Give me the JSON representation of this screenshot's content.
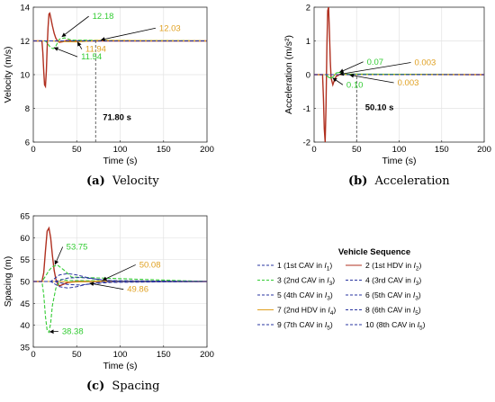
{
  "colors": {
    "green": "#33cc33",
    "orange": "#e0a020",
    "red": "#b03020",
    "blue": "#2a35a0",
    "black": "#000000"
  },
  "chart_data": [
    {
      "id": "velocity",
      "type": "line",
      "panel": "a",
      "caption_label": "(a)",
      "caption_text": "Velocity",
      "xlabel": "Time (s)",
      "ylabel": "Velocity (m/s)",
      "xlim": [
        0,
        200
      ],
      "ylim": [
        6,
        14
      ],
      "xticks": [
        0,
        50,
        100,
        150,
        200
      ],
      "yticks": [
        6,
        8,
        10,
        12,
        14
      ],
      "grid": true,
      "series": [
        {
          "color_key": "red",
          "style": "solid",
          "width": 1.4,
          "x": [
            0,
            10,
            11,
            12,
            13,
            14,
            15,
            16,
            17,
            18,
            19,
            20,
            22,
            24,
            26,
            28,
            30,
            34,
            38,
            44,
            50,
            200
          ],
          "y": [
            12,
            12,
            11.3,
            10.2,
            9.4,
            9.3,
            10.2,
            11.6,
            12.8,
            13.6,
            13.65,
            13.4,
            12.9,
            12.45,
            12.15,
            12.0,
            11.92,
            11.95,
            12.02,
            12.0,
            12.0,
            12.0
          ]
        },
        {
          "color_key": "green",
          "style": "dashed",
          "width": 1.1,
          "x": [
            0,
            14,
            17,
            20,
            23,
            26,
            30,
            36,
            44,
            200
          ],
          "y": [
            12,
            12,
            11.8,
            11.6,
            11.54,
            11.7,
            12.1,
            12.18,
            12.05,
            12.0
          ]
        },
        {
          "color_key": "orange",
          "style": "solid",
          "width": 1.1,
          "x": [
            0,
            20,
            30,
            40,
            50,
            60,
            75,
            200
          ],
          "y": [
            12,
            12,
            11.98,
            11.95,
            11.94,
            11.98,
            12.03,
            12.0
          ]
        },
        {
          "color_key": "blue",
          "style": "dashed",
          "width": 1.0,
          "x": [
            0,
            200
          ],
          "y": [
            12,
            12
          ]
        }
      ],
      "vline": {
        "x": 71.8,
        "y_from": 6,
        "y_to": 12
      },
      "annotations": [
        {
          "text": "12.18",
          "color_key": "green",
          "x": 68,
          "y": 13.3,
          "ax": 33,
          "ay": 12.25
        },
        {
          "text": "11.54",
          "color_key": "green",
          "x": 55,
          "y": 10.9,
          "ax": 24,
          "ay": 11.6
        },
        {
          "text": "11.94",
          "color_key": "orange",
          "x": 60,
          "y": 11.35,
          "ax": 51,
          "ay": 11.93
        },
        {
          "text": "12.03",
          "color_key": "orange",
          "x": 145,
          "y": 12.6,
          "ax": 78,
          "ay": 12.06
        },
        {
          "text": "71.80 s",
          "color_key": "black",
          "x": 80,
          "y": 7.3,
          "ax": null,
          "ay": null,
          "bold": true
        }
      ]
    },
    {
      "id": "acceleration",
      "type": "line",
      "panel": "b",
      "caption_label": "(b)",
      "caption_text": "Acceleration",
      "xlabel": "Time (s)",
      "ylabel": "Acceleration (m/s²)",
      "xlim": [
        0,
        200
      ],
      "ylim": [
        -2,
        2
      ],
      "xticks": [
        0,
        50,
        100,
        150,
        200
      ],
      "yticks": [
        -2,
        -1,
        0,
        1,
        2
      ],
      "grid": true,
      "series": [
        {
          "color_key": "red",
          "style": "solid",
          "width": 1.4,
          "x": [
            0,
            10,
            11,
            12,
            13,
            14,
            15,
            16,
            17,
            18,
            19,
            20,
            22,
            24,
            26,
            30,
            36,
            200
          ],
          "y": [
            0,
            0,
            -0.7,
            -1.6,
            -2.0,
            -1.0,
            0.8,
            1.9,
            2.0,
            1.3,
            0.4,
            -0.1,
            -0.3,
            -0.15,
            -0.05,
            0.0,
            0.01,
            0.0
          ]
        },
        {
          "color_key": "green",
          "style": "solid",
          "width": 1.1,
          "x": [
            0,
            14,
            17,
            20,
            23,
            26,
            30,
            36,
            200
          ],
          "y": [
            0,
            0,
            -0.08,
            -0.1,
            -0.05,
            0.05,
            0.07,
            0.02,
            0.0
          ]
        },
        {
          "color_key": "orange",
          "style": "solid",
          "width": 1.1,
          "x": [
            0,
            22,
            30,
            40,
            50,
            200
          ],
          "y": [
            0,
            0,
            0.003,
            -0.003,
            0.0,
            0.0
          ]
        },
        {
          "color_key": "blue",
          "style": "dashed",
          "width": 1.0,
          "x": [
            0,
            200
          ],
          "y": [
            0,
            0
          ]
        }
      ],
      "vline": {
        "x": 50.1,
        "y_from": -2,
        "y_to": 0
      },
      "annotations": [
        {
          "text": "0.07",
          "color_key": "green",
          "x": 62,
          "y": 0.3,
          "ax": 30,
          "ay": 0.07
        },
        {
          "text": "0.10",
          "color_key": "green",
          "x": 38,
          "y": -0.38,
          "ax": 22,
          "ay": -0.1
        },
        {
          "text": "0.003",
          "color_key": "orange",
          "x": 118,
          "y": 0.28,
          "ax": 30,
          "ay": 0.01
        },
        {
          "text": "0.003",
          "color_key": "orange",
          "x": 98,
          "y": -0.32,
          "ax": 42,
          "ay": -0.01
        },
        {
          "text": "50.10 s",
          "color_key": "black",
          "x": 60,
          "y": -1.05,
          "ax": null,
          "ay": null,
          "bold": true
        }
      ]
    },
    {
      "id": "spacing",
      "type": "line",
      "panel": "c",
      "caption_label": "(c)",
      "caption_text": "Spacing",
      "xlabel": "Time (s)",
      "ylabel": "Spacing (m)",
      "xlim": [
        0,
        200
      ],
      "ylim": [
        35,
        65
      ],
      "xticks": [
        0,
        50,
        100,
        150,
        200
      ],
      "yticks": [
        35,
        40,
        45,
        50,
        55,
        60,
        65
      ],
      "grid": true,
      "series": [
        {
          "color_key": "red",
          "style": "solid",
          "width": 1.4,
          "x": [
            0,
            10,
            12,
            14,
            16,
            18,
            20,
            22,
            24,
            26,
            28,
            30,
            34,
            40,
            50,
            60,
            200
          ],
          "y": [
            50,
            50,
            52,
            57,
            61.5,
            62.2,
            60,
            56,
            52.5,
            50.5,
            49.4,
            49.0,
            49.3,
            49.8,
            50.0,
            50.0,
            50.0
          ]
        },
        {
          "color_key": "green",
          "style": "dashed",
          "width": 1.1,
          "x": [
            0,
            10,
            12,
            14,
            16,
            18,
            20,
            22,
            26,
            32,
            40,
            200
          ],
          "y": [
            50,
            50,
            47,
            42,
            38.8,
            38.4,
            40.5,
            44.5,
            48.5,
            50.5,
            50.2,
            50.0
          ]
        },
        {
          "color_key": "green",
          "style": "dashed",
          "width": 1.1,
          "x": [
            0,
            10,
            14,
            18,
            22,
            28,
            36,
            44,
            200
          ],
          "y": [
            50,
            50,
            51.2,
            52.5,
            53.4,
            53.75,
            52.5,
            51,
            50.0
          ]
        },
        {
          "color_key": "orange",
          "style": "solid",
          "width": 1.1,
          "x": [
            0,
            30,
            45,
            60,
            80,
            100,
            200
          ],
          "y": [
            50,
            50,
            49.86,
            49.95,
            50.08,
            50.02,
            50.0
          ]
        },
        {
          "color_key": "blue",
          "style": "dashed",
          "width": 1.0,
          "x": [
            0,
            20,
            30,
            40,
            50,
            60,
            70,
            80,
            100,
            200
          ],
          "y": [
            50,
            50,
            48.8,
            48.5,
            48.8,
            49.3,
            49.6,
            49.9,
            50.0,
            50.0
          ]
        },
        {
          "color_key": "blue",
          "style": "dashed",
          "width": 1.0,
          "x": [
            0,
            20,
            30,
            40,
            50,
            60,
            70,
            80,
            100,
            200
          ],
          "y": [
            50,
            50,
            51.5,
            51.8,
            51.5,
            51.0,
            50.6,
            50.3,
            50.0,
            50.0
          ]
        },
        {
          "color_key": "blue",
          "style": "dashed",
          "width": 1.0,
          "x": [
            0,
            25,
            40,
            55,
            70,
            90,
            200
          ],
          "y": [
            50,
            50,
            50.8,
            50.9,
            50.6,
            50.2,
            50.0
          ]
        },
        {
          "color_key": "blue",
          "style": "dashed",
          "width": 1.0,
          "x": [
            0,
            25,
            40,
            55,
            70,
            90,
            200
          ],
          "y": [
            50,
            50,
            49.3,
            49.2,
            49.5,
            49.8,
            50.0
          ]
        }
      ],
      "annotations": [
        {
          "text": "53.75",
          "color_key": "green",
          "x": 38,
          "y": 57.3,
          "ax": 25,
          "ay": 53.9
        },
        {
          "text": "38.38",
          "color_key": "green",
          "x": 33,
          "y": 38.0,
          "ax": 19,
          "ay": 38.5
        },
        {
          "text": "50.08",
          "color_key": "orange",
          "x": 122,
          "y": 53.2,
          "ax": 80,
          "ay": 50.3
        },
        {
          "text": "49.86",
          "color_key": "orange",
          "x": 108,
          "y": 47.6,
          "ax": 65,
          "ay": 49.6
        }
      ]
    }
  ],
  "legend": {
    "title": "Vehicle Sequence",
    "entries": [
      {
        "label": "1 (1st CAV in ",
        "sub": "1",
        "color_key": "blue",
        "style": "dashed"
      },
      {
        "label": "2 (1st HDV in ",
        "sub": "2",
        "color_key": "red",
        "style": "solid"
      },
      {
        "label": "3 (2nd CAV in ",
        "sub": "3",
        "color_key": "green",
        "style": "dashed"
      },
      {
        "label": "4 (3rd CAV in ",
        "sub": "3",
        "color_key": "blue",
        "style": "dashed"
      },
      {
        "label": "5 (4th CAV in ",
        "sub": "3",
        "color_key": "blue",
        "style": "dashed"
      },
      {
        "label": "6 (5th CAV in ",
        "sub": "3",
        "color_key": "blue",
        "style": "dashed"
      },
      {
        "label": "7 (2nd HDV in ",
        "sub": "4",
        "color_key": "orange",
        "style": "solid"
      },
      {
        "label": "8 (6th CAV in ",
        "sub": "5",
        "color_key": "blue",
        "style": "dashed"
      },
      {
        "label": "9 (7th CAV in ",
        "sub": "5",
        "color_key": "blue",
        "style": "dashed"
      },
      {
        "label": "10 (8th CAV in ",
        "sub": "5",
        "color_key": "blue",
        "style": "dashed"
      }
    ]
  }
}
